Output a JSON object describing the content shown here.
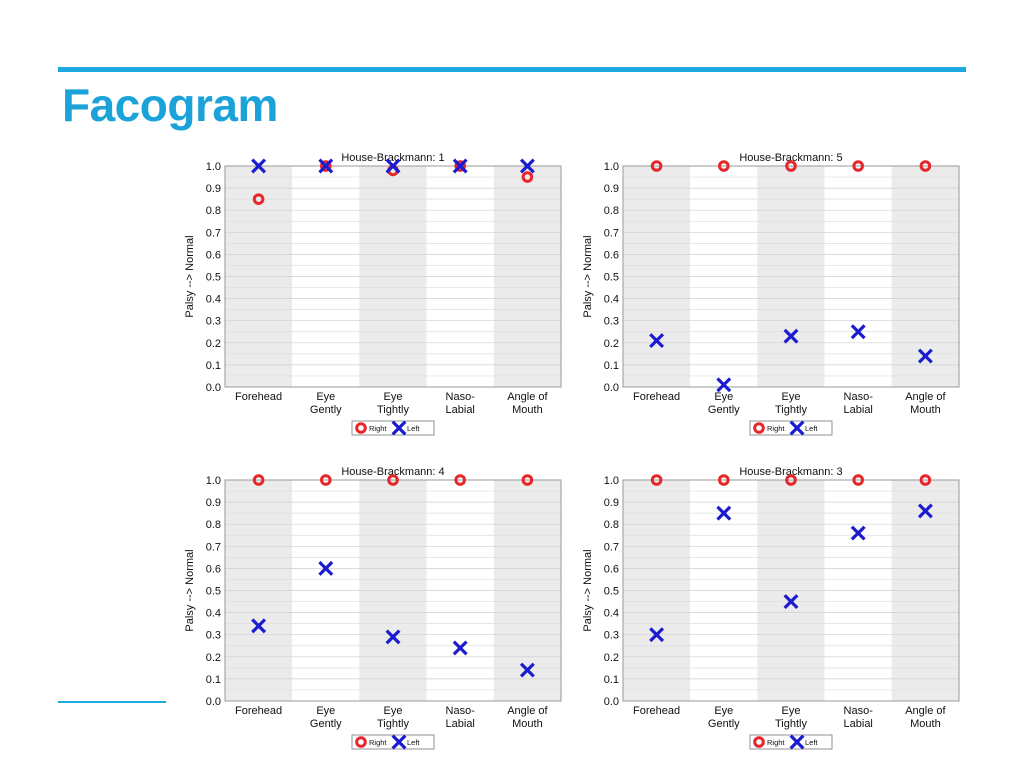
{
  "page": {
    "title": "Facogram",
    "accent": "#1eaadf"
  },
  "chart_data": [
    {
      "type": "scatter",
      "title": "House-Brackmann: 1",
      "ylabel": "Palsy --> Normal",
      "ylim": [
        0,
        1
      ],
      "yticks": [
        "0.0",
        "0.1",
        "0.2",
        "0.3",
        "0.4",
        "0.5",
        "0.6",
        "0.7",
        "0.8",
        "0.9",
        "1.0"
      ],
      "categories": [
        [
          "Forehead"
        ],
        [
          "Eye",
          "Gently"
        ],
        [
          "Eye",
          "Tightly"
        ],
        [
          "Naso-",
          "Labial"
        ],
        [
          "Angle of",
          "Mouth"
        ]
      ],
      "series": [
        {
          "name": "Right",
          "marker": "circle",
          "color": "#e8262a",
          "values": [
            0.85,
            1.0,
            0.98,
            1.0,
            0.95
          ]
        },
        {
          "name": "Left",
          "marker": "x",
          "color": "#1b1bd0",
          "values": [
            1.0,
            1.0,
            1.0,
            1.0,
            1.0
          ]
        }
      ],
      "legend": "bottom-center",
      "grid": true
    },
    {
      "type": "scatter",
      "title": "House-Brackmann: 5",
      "ylabel": "Palsy --> Normal",
      "ylim": [
        0,
        1
      ],
      "yticks": [
        "0.0",
        "0.1",
        "0.2",
        "0.3",
        "0.4",
        "0.5",
        "0.6",
        "0.7",
        "0.8",
        "0.9",
        "1.0"
      ],
      "categories": [
        [
          "Forehead"
        ],
        [
          "Eye",
          "Gently"
        ],
        [
          "Eye",
          "Tightly"
        ],
        [
          "Naso-",
          "Labial"
        ],
        [
          "Angle of",
          "Mouth"
        ]
      ],
      "series": [
        {
          "name": "Right",
          "marker": "circle",
          "color": "#e8262a",
          "values": [
            1.0,
            1.0,
            1.0,
            1.0,
            1.0
          ]
        },
        {
          "name": "Left",
          "marker": "x",
          "color": "#1b1bd0",
          "values": [
            0.21,
            0.01,
            0.23,
            0.25,
            0.14
          ]
        }
      ],
      "legend": "bottom-center",
      "grid": true
    },
    {
      "type": "scatter",
      "title": "House-Brackmann: 4",
      "ylabel": "Palsy --> Normal",
      "ylim": [
        0,
        1
      ],
      "yticks": [
        "0.0",
        "0.1",
        "0.2",
        "0.3",
        "0.4",
        "0.5",
        "0.6",
        "0.7",
        "0.8",
        "0.9",
        "1.0"
      ],
      "categories": [
        [
          "Forehead"
        ],
        [
          "Eye",
          "Gently"
        ],
        [
          "Eye",
          "Tightly"
        ],
        [
          "Naso-",
          "Labial"
        ],
        [
          "Angle of",
          "Mouth"
        ]
      ],
      "series": [
        {
          "name": "Right",
          "marker": "circle",
          "color": "#e8262a",
          "values": [
            1.0,
            1.0,
            1.0,
            1.0,
            1.0
          ]
        },
        {
          "name": "Left",
          "marker": "x",
          "color": "#1b1bd0",
          "values": [
            0.34,
            0.6,
            0.29,
            0.24,
            0.14
          ]
        }
      ],
      "legend": "bottom-center",
      "grid": true
    },
    {
      "type": "scatter",
      "title": "House-Brackmann: 3",
      "ylabel": "Palsy --> Normal",
      "ylim": [
        0,
        1
      ],
      "yticks": [
        "0.0",
        "0.1",
        "0.2",
        "0.3",
        "0.4",
        "0.5",
        "0.6",
        "0.7",
        "0.8",
        "0.9",
        "1.0"
      ],
      "categories": [
        [
          "Forehead"
        ],
        [
          "Eye",
          "Gently"
        ],
        [
          "Eye",
          "Tightly"
        ],
        [
          "Naso-",
          "Labial"
        ],
        [
          "Angle of",
          "Mouth"
        ]
      ],
      "series": [
        {
          "name": "Right",
          "marker": "circle",
          "color": "#e8262a",
          "values": [
            1.0,
            1.0,
            1.0,
            1.0,
            1.0
          ]
        },
        {
          "name": "Left",
          "marker": "x",
          "color": "#1b1bd0",
          "values": [
            0.3,
            0.85,
            0.45,
            0.76,
            0.86
          ]
        }
      ],
      "legend": "bottom-center",
      "grid": true
    }
  ]
}
